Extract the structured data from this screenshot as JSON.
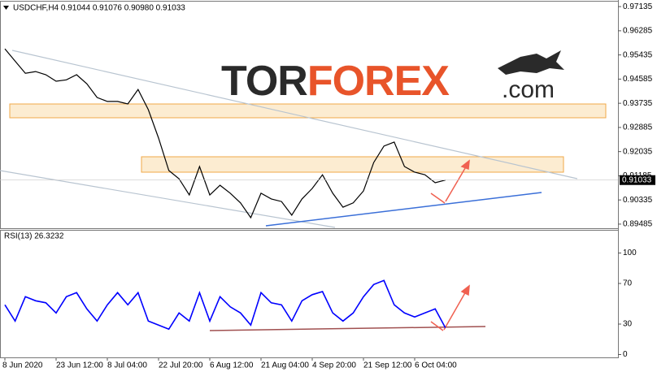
{
  "chart_data": [
    {
      "type": "line",
      "title": "USDCHF,H4  0.91044 0.91076 0.90980 0.91033",
      "categories": [
        "8 Jun 2020",
        null,
        null,
        null,
        null,
        "23 Jun 12:00",
        null,
        null,
        null,
        null,
        "8 Jul 04:00",
        null,
        null,
        null,
        null,
        "22 Jul 20:00",
        null,
        null,
        null,
        null,
        "6 Aug 12:00",
        null,
        null,
        null,
        null,
        "21 Aug 04:00",
        null,
        null,
        null,
        null,
        "4 Sep 20:00",
        null,
        null,
        null,
        null,
        "21 Sep 12:00",
        null,
        null,
        null,
        null,
        "6 Oct 04:00",
        null,
        null,
        null
      ],
      "values": [
        0.9565,
        0.9522,
        0.9479,
        0.9485,
        0.9474,
        0.9451,
        0.9456,
        0.9474,
        0.9442,
        0.9394,
        0.938,
        0.938,
        0.9371,
        0.9422,
        0.9351,
        0.9251,
        0.9137,
        0.9108,
        0.9051,
        0.9151,
        0.9051,
        0.9085,
        0.9057,
        0.9023,
        0.8971,
        0.9057,
        0.9037,
        0.9028,
        0.898,
        0.9037,
        0.9074,
        0.9122,
        0.9057,
        0.9008,
        0.9023,
        0.9065,
        0.9165,
        0.9223,
        0.9237,
        0.9151,
        0.9131,
        0.9122,
        0.9094,
        0.91033
      ],
      "color": "#000000",
      "ylim": [
        0.8934,
        0.9731
      ],
      "yticks": [
        0.97135,
        0.96285,
        0.95435,
        0.94585,
        0.93735,
        0.92885,
        0.92035,
        0.91185,
        0.90335,
        0.89485
      ],
      "current_price": 0.91033,
      "watermark": {
        "part1": "TOR",
        "part2": "FOREX",
        "part3": ".com"
      }
    },
    {
      "type": "line",
      "title": "RSI(13) 26.3232",
      "values": [
        49,
        33,
        57,
        53,
        51,
        41,
        57,
        61,
        45,
        33,
        49,
        61,
        49,
        61,
        33,
        29,
        25,
        41,
        33,
        61,
        33,
        57,
        47,
        41,
        29,
        61,
        51,
        49,
        33,
        53,
        59,
        62,
        41,
        33,
        41,
        57,
        69,
        73,
        49,
        41,
        37,
        41,
        45,
        26.3232
      ],
      "color": "#0000ff",
      "ylim": [
        0,
        100
      ],
      "yticks": [
        100,
        70,
        30,
        0
      ]
    }
  ]
}
